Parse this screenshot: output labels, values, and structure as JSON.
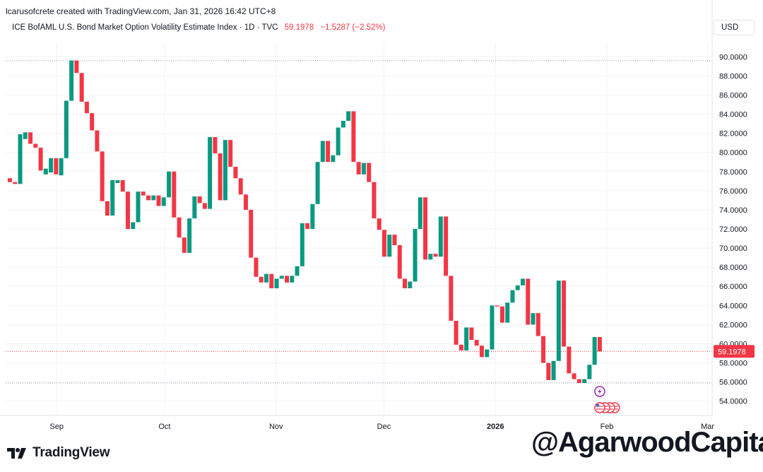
{
  "credit": "lcarusofcrete created with TradingView.com, Jan 31, 2026 16:42 UTC+8",
  "legend": {
    "title": "ICE BofAML U.S. Bond Market Option Volatility Estimate Index · 1D · TVC",
    "last_price": "59.1978",
    "change": "−1.5287 (−2.52%)"
  },
  "currency": "USD",
  "branding": {
    "name": "TradingView",
    "watermark": "@AgarwoodCapital"
  },
  "colors": {
    "up": "#089981",
    "down": "#f23645",
    "grid": "#f0f3fa",
    "axis_text": "#131722"
  },
  "icons": [
    "tradingview-logo-icon",
    "lightning-event-icon",
    "us-flag-event-icon"
  ],
  "chart_data": {
    "type": "candlestick",
    "y_range": [
      52.5,
      91.5
    ],
    "y_ticks": [
      "54.0000",
      "56.0000",
      "58.0000",
      "60.0000",
      "62.0000",
      "64.0000",
      "66.0000",
      "68.0000",
      "70.0000",
      "72.0000",
      "74.0000",
      "76.0000",
      "78.0000",
      "80.0000",
      "82.0000",
      "84.0000",
      "86.0000",
      "88.0000",
      "90.0000"
    ],
    "x_labels": [
      {
        "label": "Sep",
        "date": "2025-09-01"
      },
      {
        "label": "Oct",
        "date": "2025-10-01"
      },
      {
        "label": "Nov",
        "date": "2025-11-01"
      },
      {
        "label": "Dec",
        "date": "2025-12-01"
      },
      {
        "label": "2026",
        "date": "2026-01-01"
      },
      {
        "label": "Feb",
        "date": "2026-02-01"
      },
      {
        "label": "Mar",
        "date": "2026-03-01"
      }
    ],
    "last_price_label": "59.1978",
    "dotted_levels": [
      89.6,
      59.2,
      55.9
    ],
    "candles": [
      {
        "date": "2025-08-19",
        "o": 77.3,
        "c": 76.9
      },
      {
        "date": "2025-08-20",
        "o": 76.9,
        "c": 76.7
      },
      {
        "date": "2025-08-21",
        "o": 76.7,
        "c": 81.9
      },
      {
        "date": "2025-08-22",
        "o": 81.4,
        "c": 82.1
      },
      {
        "date": "2025-08-25",
        "o": 82.1,
        "c": 80.9
      },
      {
        "date": "2025-08-26",
        "o": 80.9,
        "c": 80.5
      },
      {
        "date": "2025-08-27",
        "o": 80.5,
        "c": 78.1
      },
      {
        "date": "2025-08-28",
        "o": 77.7,
        "c": 78.3
      },
      {
        "date": "2025-08-29",
        "o": 77.9,
        "c": 79.4
      },
      {
        "date": "2025-09-01",
        "o": 79.4,
        "c": 77.7
      },
      {
        "date": "2025-09-02",
        "o": 77.6,
        "c": 79.4
      },
      {
        "date": "2025-09-03",
        "o": 79.4,
        "c": 85.4
      },
      {
        "date": "2025-09-04",
        "o": 85.4,
        "c": 89.6
      },
      {
        "date": "2025-09-05",
        "o": 89.6,
        "c": 88.3
      },
      {
        "date": "2025-09-08",
        "o": 88.3,
        "c": 85.3
      },
      {
        "date": "2025-09-09",
        "o": 85.3,
        "c": 84.1
      },
      {
        "date": "2025-09-10",
        "o": 84.1,
        "c": 82.3
      },
      {
        "date": "2025-09-11",
        "o": 82.3,
        "c": 80.1
      },
      {
        "date": "2025-09-12",
        "o": 80.1,
        "c": 74.9
      },
      {
        "date": "2025-09-15",
        "o": 74.9,
        "c": 73.4
      },
      {
        "date": "2025-09-16",
        "o": 73.4,
        "c": 77.1
      },
      {
        "date": "2025-09-17",
        "o": 76.8,
        "c": 77.1
      },
      {
        "date": "2025-09-18",
        "o": 77.1,
        "c": 75.9
      },
      {
        "date": "2025-09-19",
        "o": 75.9,
        "c": 72.0
      },
      {
        "date": "2025-09-22",
        "o": 72.0,
        "c": 72.7
      },
      {
        "date": "2025-09-23",
        "o": 72.7,
        "c": 75.9
      },
      {
        "date": "2025-09-24",
        "o": 75.9,
        "c": 75.5
      },
      {
        "date": "2025-09-25",
        "o": 75.5,
        "c": 75.0
      },
      {
        "date": "2025-09-26",
        "o": 75.0,
        "c": 75.5
      },
      {
        "date": "2025-09-29",
        "o": 75.5,
        "c": 74.4
      },
      {
        "date": "2025-09-30",
        "o": 74.4,
        "c": 75.3
      },
      {
        "date": "2025-10-01",
        "o": 75.3,
        "c": 78.0
      },
      {
        "date": "2025-10-02",
        "o": 78.0,
        "c": 73.2
      },
      {
        "date": "2025-10-03",
        "o": 73.2,
        "c": 71.1
      },
      {
        "date": "2025-10-06",
        "o": 71.1,
        "c": 69.5
      },
      {
        "date": "2025-10-07",
        "o": 69.5,
        "c": 73.1
      },
      {
        "date": "2025-10-08",
        "o": 73.1,
        "c": 75.4
      },
      {
        "date": "2025-10-09",
        "o": 75.4,
        "c": 74.7
      },
      {
        "date": "2025-10-10",
        "o": 74.7,
        "c": 74.1
      },
      {
        "date": "2025-10-13",
        "o": 74.1,
        "c": 81.6
      },
      {
        "date": "2025-10-14",
        "o": 81.6,
        "c": 79.9
      },
      {
        "date": "2025-10-15",
        "o": 79.9,
        "c": 75.0
      },
      {
        "date": "2025-10-16",
        "o": 75.0,
        "c": 81.3
      },
      {
        "date": "2025-10-17",
        "o": 81.3,
        "c": 78.5
      },
      {
        "date": "2025-10-20",
        "o": 78.5,
        "c": 77.3
      },
      {
        "date": "2025-10-21",
        "o": 77.3,
        "c": 75.6
      },
      {
        "date": "2025-10-22",
        "o": 75.6,
        "c": 74.0
      },
      {
        "date": "2025-10-23",
        "o": 74.0,
        "c": 69.0
      },
      {
        "date": "2025-10-24",
        "o": 69.0,
        "c": 67.0
      },
      {
        "date": "2025-10-27",
        "o": 67.0,
        "c": 66.4
      },
      {
        "date": "2025-10-28",
        "o": 66.4,
        "c": 67.3
      },
      {
        "date": "2025-10-29",
        "o": 67.3,
        "c": 65.8
      },
      {
        "date": "2025-10-30",
        "o": 65.8,
        "c": 66.8
      },
      {
        "date": "2025-10-31",
        "o": 66.8,
        "c": 67.1
      },
      {
        "date": "2025-11-03",
        "o": 67.1,
        "c": 66.4
      },
      {
        "date": "2025-11-04",
        "o": 66.4,
        "c": 67.1
      },
      {
        "date": "2025-11-05",
        "o": 67.1,
        "c": 68.1
      },
      {
        "date": "2025-11-06",
        "o": 68.1,
        "c": 72.6
      },
      {
        "date": "2025-11-07",
        "o": 72.6,
        "c": 72.0
      },
      {
        "date": "2025-11-10",
        "o": 72.0,
        "c": 74.6
      },
      {
        "date": "2025-11-11",
        "o": 74.6,
        "c": 79.0
      },
      {
        "date": "2025-11-12",
        "o": 79.0,
        "c": 81.2
      },
      {
        "date": "2025-11-13",
        "o": 81.2,
        "c": 79.0
      },
      {
        "date": "2025-11-14",
        "o": 79.0,
        "c": 79.7
      },
      {
        "date": "2025-11-17",
        "o": 79.7,
        "c": 82.6
      },
      {
        "date": "2025-11-18",
        "o": 82.6,
        "c": 83.3
      },
      {
        "date": "2025-11-19",
        "o": 83.3,
        "c": 84.3
      },
      {
        "date": "2025-11-20",
        "o": 84.3,
        "c": 79.0
      },
      {
        "date": "2025-11-21",
        "o": 79.0,
        "c": 77.7
      },
      {
        "date": "2025-11-24",
        "o": 77.7,
        "c": 78.9
      },
      {
        "date": "2025-11-25",
        "o": 78.9,
        "c": 76.9
      },
      {
        "date": "2025-11-26",
        "o": 76.9,
        "c": 73.1
      },
      {
        "date": "2025-11-28",
        "o": 73.1,
        "c": 71.9
      },
      {
        "date": "2025-12-01",
        "o": 71.9,
        "c": 69.1
      },
      {
        "date": "2025-12-02",
        "o": 69.1,
        "c": 71.4
      },
      {
        "date": "2025-12-03",
        "o": 71.4,
        "c": 70.3
      },
      {
        "date": "2025-12-04",
        "o": 70.3,
        "c": 66.8
      },
      {
        "date": "2025-12-05",
        "o": 66.8,
        "c": 65.8
      },
      {
        "date": "2025-12-08",
        "o": 65.8,
        "c": 66.5
      },
      {
        "date": "2025-12-09",
        "o": 66.5,
        "c": 72.0
      },
      {
        "date": "2025-12-10",
        "o": 72.0,
        "c": 75.3
      },
      {
        "date": "2025-12-11",
        "o": 75.3,
        "c": 68.8
      },
      {
        "date": "2025-12-12",
        "o": 68.8,
        "c": 69.4
      },
      {
        "date": "2025-12-15",
        "o": 69.4,
        "c": 69.1
      },
      {
        "date": "2025-12-16",
        "o": 69.1,
        "c": 73.3
      },
      {
        "date": "2025-12-17",
        "o": 73.3,
        "c": 67.1
      },
      {
        "date": "2025-12-18",
        "o": 67.1,
        "c": 62.4
      },
      {
        "date": "2025-12-19",
        "o": 62.4,
        "c": 59.9
      },
      {
        "date": "2025-12-22",
        "o": 59.9,
        "c": 59.3
      },
      {
        "date": "2025-12-23",
        "o": 59.3,
        "c": 61.7
      },
      {
        "date": "2025-12-24",
        "o": 61.7,
        "c": 60.4
      },
      {
        "date": "2025-12-26",
        "o": 60.4,
        "c": 59.8
      },
      {
        "date": "2025-12-29",
        "o": 59.8,
        "c": 58.6
      },
      {
        "date": "2025-12-30",
        "o": 58.6,
        "c": 59.4
      },
      {
        "date": "2025-12-31",
        "o": 59.4,
        "c": 64.0
      },
      {
        "date": "2026-01-02",
        "o": 64.0,
        "c": 63.9
      },
      {
        "date": "2026-01-05",
        "o": 63.9,
        "c": 62.2
      },
      {
        "date": "2026-01-06",
        "o": 62.2,
        "c": 64.3
      },
      {
        "date": "2026-01-07",
        "o": 64.3,
        "c": 65.6
      },
      {
        "date": "2026-01-08",
        "o": 65.6,
        "c": 66.1
      },
      {
        "date": "2026-01-09",
        "o": 66.1,
        "c": 66.8
      },
      {
        "date": "2026-01-12",
        "o": 66.8,
        "c": 62.0
      },
      {
        "date": "2026-01-13",
        "o": 62.0,
        "c": 63.2
      },
      {
        "date": "2026-01-14",
        "o": 63.2,
        "c": 60.8
      },
      {
        "date": "2026-01-15",
        "o": 60.8,
        "c": 58.0
      },
      {
        "date": "2026-01-16",
        "o": 58.0,
        "c": 56.2
      },
      {
        "date": "2026-01-20",
        "o": 56.2,
        "c": 58.2
      },
      {
        "date": "2026-01-21",
        "o": 58.2,
        "c": 66.6
      },
      {
        "date": "2026-01-22",
        "o": 66.6,
        "c": 59.7
      },
      {
        "date": "2026-01-23",
        "o": 59.7,
        "c": 56.9
      },
      {
        "date": "2026-01-26",
        "o": 56.9,
        "c": 56.3
      },
      {
        "date": "2026-01-27",
        "o": 56.3,
        "c": 55.9
      },
      {
        "date": "2026-01-28",
        "o": 55.9,
        "c": 56.3
      },
      {
        "date": "2026-01-29",
        "o": 56.3,
        "c": 57.8
      },
      {
        "date": "2026-01-29",
        "o": 57.8,
        "c": 60.7
      },
      {
        "date": "2026-01-30",
        "o": 60.7,
        "c": 59.2
      }
    ]
  }
}
